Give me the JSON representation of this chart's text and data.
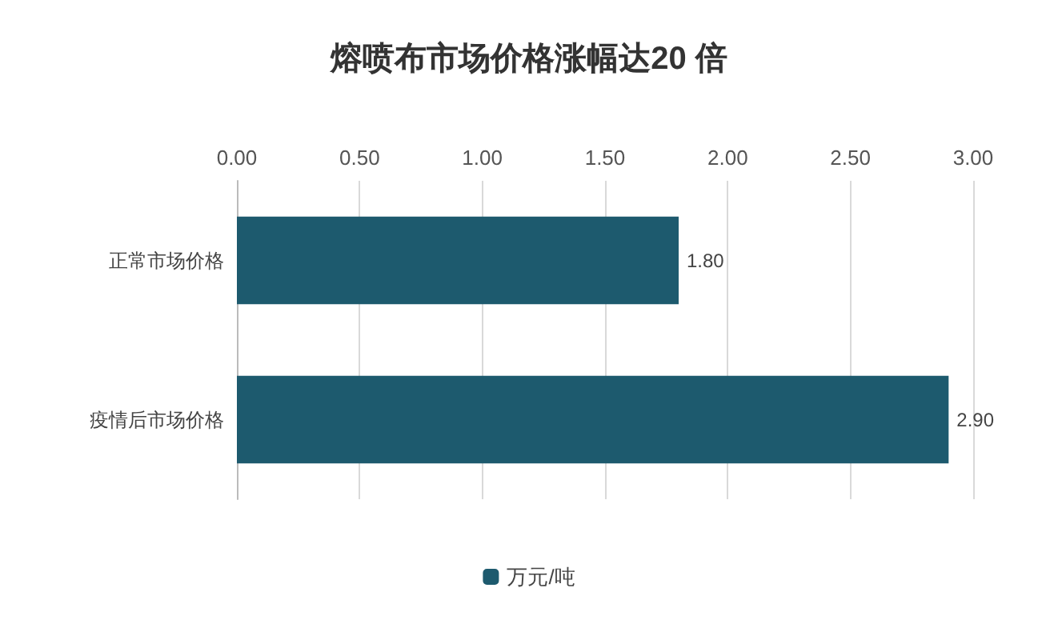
{
  "chart_data": {
    "type": "bar",
    "orientation": "horizontal",
    "title": "熔喷布市场价格涨幅达20 倍",
    "categories": [
      "正常市场价格",
      "疫情后市场价格"
    ],
    "series": [
      {
        "name": "万元/吨",
        "color": "#1d5a6e",
        "values": [
          1.8,
          2.9
        ],
        "value_labels": [
          "1.80",
          "2.90"
        ]
      }
    ],
    "xlim": [
      0,
      3
    ],
    "xticks": [
      {
        "value": 0,
        "label": "0.00"
      },
      {
        "value": 0.5,
        "label": "0.50"
      },
      {
        "value": 1,
        "label": "1.00"
      },
      {
        "value": 1.5,
        "label": "1.50"
      },
      {
        "value": 2,
        "label": "2.00"
      },
      {
        "value": 2.5,
        "label": "2.50"
      },
      {
        "value": 3,
        "label": "3.00"
      }
    ],
    "grid": "x",
    "legend": "bottom"
  }
}
